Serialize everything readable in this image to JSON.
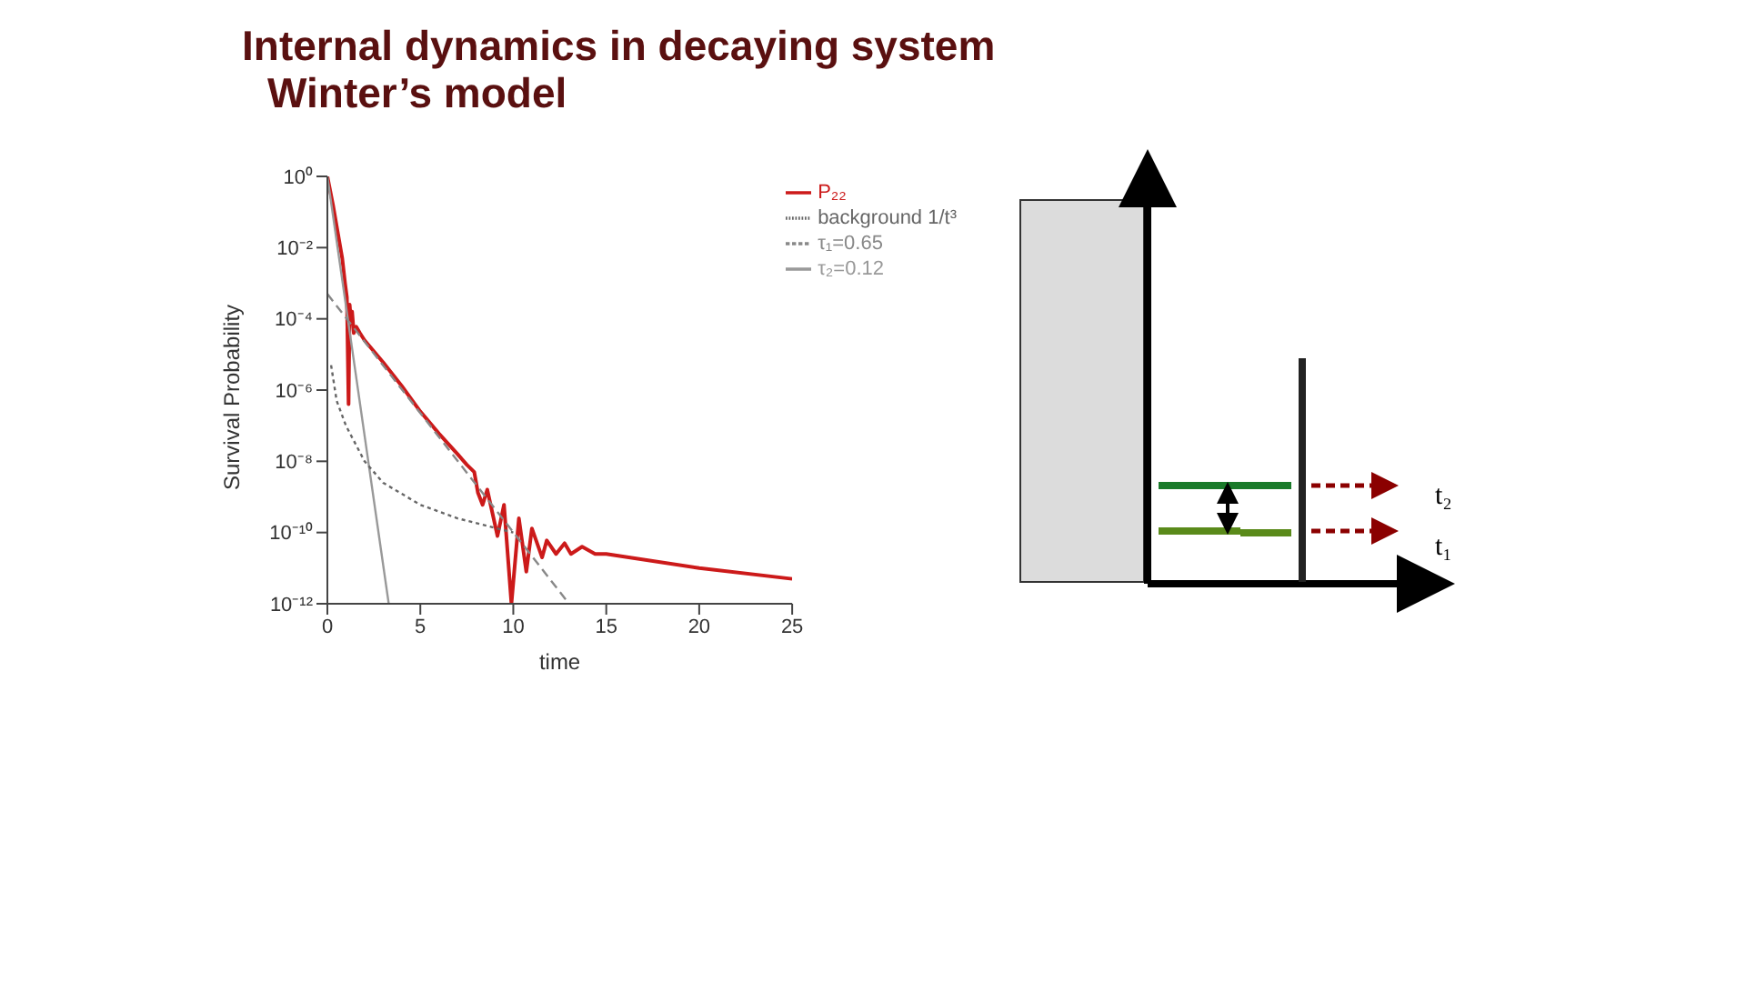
{
  "chart_data": {
    "type": "line",
    "title": "Internal dynamics in decaying system",
    "subtitle": "Winter’s model",
    "xlabel": "time",
    "ylabel": "Survival Probability",
    "log": "y",
    "xlim": [
      0,
      25
    ],
    "xticks": [
      0,
      5,
      10,
      15,
      20,
      25
    ],
    "ylim": [
      1e-12,
      1
    ],
    "yticks": [
      {
        "value": 1,
        "label": "10⁰"
      },
      {
        "value": 0.01,
        "label": "10⁻²"
      },
      {
        "value": 0.0001,
        "label": "10⁻⁴"
      },
      {
        "value": 1e-06,
        "label": "10⁻⁶"
      },
      {
        "value": 1e-08,
        "label": "10⁻⁸"
      },
      {
        "value": 1e-10,
        "label": "10⁻¹⁰"
      },
      {
        "value": 1e-12,
        "label": "10⁻¹²"
      }
    ],
    "grid": false,
    "legend": "top right",
    "marker": "none",
    "series": [
      {
        "name": "P₂₂",
        "color": "#cc1a1a",
        "line_style": "solid",
        "x": [
          0,
          0.3,
          0.6,
          0.8,
          0.95,
          1.05,
          1.14,
          1.2,
          1.27,
          1.33,
          1.42,
          1.55,
          1.75,
          2,
          3,
          4,
          5,
          6,
          7,
          7.5,
          7.9,
          8.1,
          8.35,
          8.6,
          9.15,
          9.5,
          9.9,
          10.3,
          10.7,
          11.0,
          11.55,
          11.8,
          12.3,
          12.76,
          13.1,
          13.7,
          14.4,
          15,
          20,
          25
        ],
        "values": [
          1,
          0.16,
          0.02,
          0.005,
          0.001,
          0.0004,
          4e-07,
          0.00025,
          8e-05,
          0.00016,
          4e-05,
          6e-05,
          4e-05,
          2.5e-05,
          6e-06,
          1.3e-06,
          2.5e-07,
          6e-08,
          1.6e-08,
          8e-09,
          5e-09,
          1.3e-09,
          6e-10,
          1.6e-09,
          8e-11,
          6e-10,
          1e-12,
          2.5e-10,
          8e-12,
          1.3e-10,
          2e-11,
          6e-11,
          2.5e-11,
          5e-11,
          2.5e-11,
          4e-11,
          2.5e-11,
          2.5e-11,
          1e-11,
          5e-12
        ]
      },
      {
        "name": "τ₂=0.12",
        "color": "#999999",
        "line_style": "solid",
        "x": [
          0,
          3.3
        ],
        "values": [
          1,
          1e-12
        ]
      },
      {
        "name": "τ₁=0.65",
        "color": "#888888",
        "line_style": "dashed",
        "x": [
          0,
          13
        ],
        "values": [
          0.0005,
          1e-12
        ]
      },
      {
        "name": "background 1/t³",
        "color": "#666666",
        "line_style": "dotted",
        "x": [
          0.2,
          0.5,
          1,
          2,
          3,
          5,
          7,
          10
        ],
        "values": [
          5e-06,
          5e-07,
          1e-07,
          1e-08,
          2.5e-09,
          6e-10,
          2.5e-10,
          1e-10
        ]
      }
    ],
    "annotations": [
      "t₂",
      "t₁"
    ]
  }
}
